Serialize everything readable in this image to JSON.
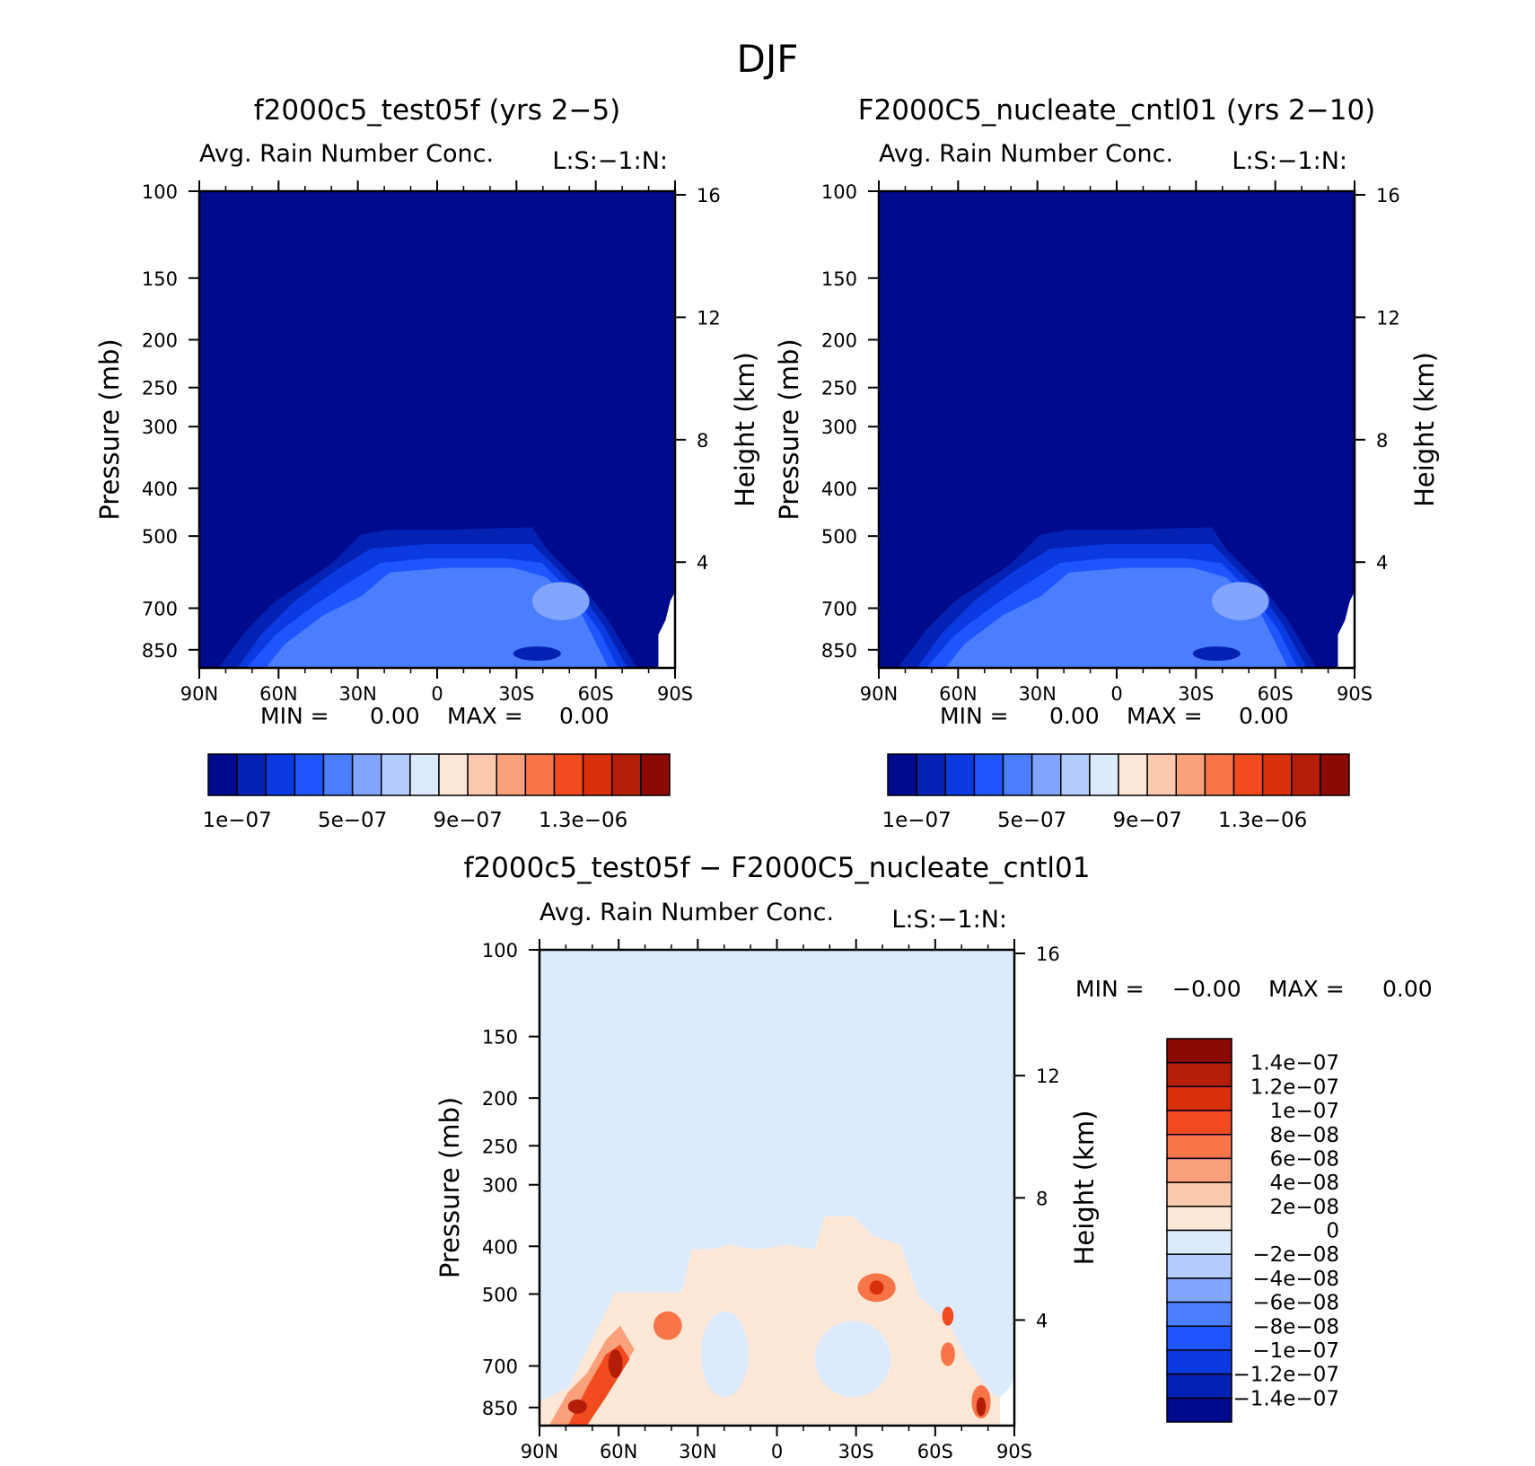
{
  "figure_title": "DJF",
  "chart_data": [
    {
      "type": "contour",
      "title": "f2000c5_test05f (yrs 2−5)",
      "subtitle_left": "Avg. Rain Number Conc.",
      "subtitle_right": "L:S:−1:N:",
      "xlabel": "",
      "ylabel": "Pressure (mb)",
      "ylabel_right": "Height (km)",
      "x_ticks": [
        "90N",
        "60N",
        "30N",
        "0",
        "30S",
        "60S",
        "90S"
      ],
      "y_ticks": [
        "100",
        "150",
        "200",
        "250",
        "300",
        "400",
        "500",
        "700",
        "850"
      ],
      "y_ticks_right": [
        "16",
        "12",
        "8",
        "4"
      ],
      "min_label": "MIN =",
      "min_value": "0.00",
      "max_label": "MAX =",
      "max_value": "0.00",
      "colorbar_orientation": "horizontal",
      "colorbar_colors": [
        "#000a8c",
        "#0321b3",
        "#0a3ae0",
        "#1e55ff",
        "#4b7dff",
        "#82a5ff",
        "#b4ccff",
        "#dcebfc",
        "#fde8d8",
        "#fcc9ae",
        "#faa07a",
        "#f8754a",
        "#f24b1f",
        "#d9300c",
        "#b41e08",
        "#8c0a06"
      ],
      "colorbar_labels": [
        "1e−07",
        "5e−07",
        "9e−07",
        "1.3e−06"
      ]
    },
    {
      "type": "contour",
      "title": "F2000C5_nucleate_cntl01 (yrs 2−10)",
      "subtitle_left": "Avg. Rain Number Conc.",
      "subtitle_right": "L:S:−1:N:",
      "xlabel": "",
      "ylabel": "Pressure (mb)",
      "ylabel_right": "Height (km)",
      "x_ticks": [
        "90N",
        "60N",
        "30N",
        "0",
        "30S",
        "60S",
        "90S"
      ],
      "y_ticks": [
        "100",
        "150",
        "200",
        "250",
        "300",
        "400",
        "500",
        "700",
        "850"
      ],
      "y_ticks_right": [
        "16",
        "12",
        "8",
        "4"
      ],
      "min_label": "MIN =",
      "min_value": "0.00",
      "max_label": "MAX =",
      "max_value": "0.00",
      "colorbar_orientation": "horizontal",
      "colorbar_colors": [
        "#000a8c",
        "#0321b3",
        "#0a3ae0",
        "#1e55ff",
        "#4b7dff",
        "#82a5ff",
        "#b4ccff",
        "#dcebfc",
        "#fde8d8",
        "#fcc9ae",
        "#faa07a",
        "#f8754a",
        "#f24b1f",
        "#d9300c",
        "#b41e08",
        "#8c0a06"
      ],
      "colorbar_labels": [
        "1e−07",
        "5e−07",
        "9e−07",
        "1.3e−06"
      ]
    },
    {
      "type": "contour",
      "title": "f2000c5_test05f − F2000C5_nucleate_cntl01",
      "subtitle_left": "Avg. Rain Number Conc.",
      "subtitle_right": "L:S:−1:N:",
      "xlabel": "",
      "ylabel": "Pressure (mb)",
      "ylabel_right": "Height (km)",
      "x_ticks": [
        "90N",
        "60N",
        "30N",
        "0",
        "30S",
        "60S",
        "90S"
      ],
      "y_ticks": [
        "100",
        "150",
        "200",
        "250",
        "300",
        "400",
        "500",
        "700",
        "850"
      ],
      "y_ticks_right": [
        "16",
        "12",
        "8",
        "4"
      ],
      "min_label": "MIN =",
      "min_value": "−0.00",
      "max_label": "MAX =",
      "max_value": "0.00",
      "colorbar_orientation": "vertical",
      "colorbar_colors": [
        "#8c0a06",
        "#b41e08",
        "#d9300c",
        "#f24b1f",
        "#f8754a",
        "#faa07a",
        "#fcc9ae",
        "#fde8d8",
        "#dcebfc",
        "#b4ccff",
        "#82a5ff",
        "#4b7dff",
        "#1e55ff",
        "#0a3ae0",
        "#0321b3",
        "#000a8c"
      ],
      "colorbar_labels": [
        "1.4e−07",
        "1.2e−07",
        "1e−07",
        "8e−08",
        "6e−08",
        "4e−08",
        "2e−08",
        "0",
        "−2e−08",
        "−4e−08",
        "−6e−08",
        "−8e−08",
        "−1e−07",
        "−1.2e−07",
        "−1.4e−07"
      ]
    }
  ]
}
